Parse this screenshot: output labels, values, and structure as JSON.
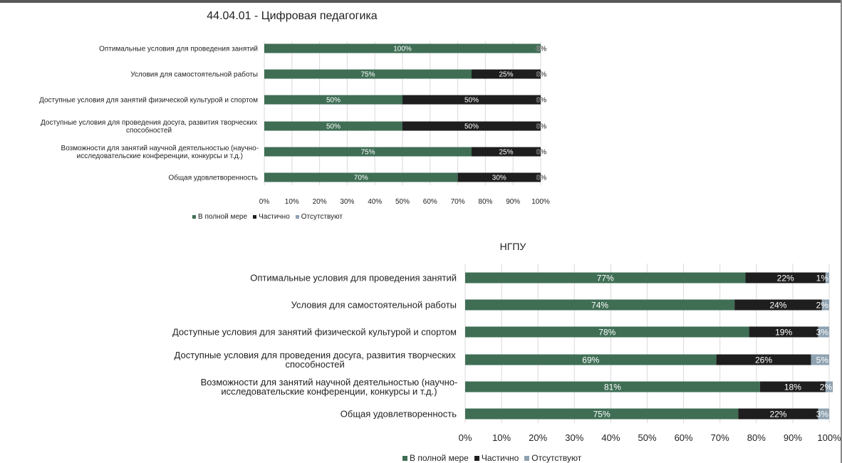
{
  "colors": {
    "full": "#3f6e55",
    "partial": "#1e1e1e",
    "absent": "#8ea1b0"
  },
  "legend": {
    "full": "В полной мере",
    "partial": "Частично",
    "absent": "Отсутствуют"
  },
  "chart_data": [
    {
      "type": "bar",
      "orientation": "horizontal",
      "stacked": "percent",
      "title": "44.04.01 - Цифровая педагогика",
      "categories": [
        [
          "Оптимальные условия для проведения занятий"
        ],
        [
          "Условия для самостоятельной работы"
        ],
        [
          "Доступные условия для занятий физической культурой и спортом"
        ],
        [
          "Доступные условия для проведения досуга, развития творческих",
          "способностей"
        ],
        [
          "Возможности для занятий научной деятельностью (научно-",
          "исследовательские конференции, конкурсы и т.д.)"
        ],
        [
          "Общая удовлетворенность"
        ]
      ],
      "series": [
        {
          "name": "В полной мере",
          "values": [
            100,
            75,
            50,
            50,
            75,
            70
          ]
        },
        {
          "name": "Частично",
          "values": [
            0,
            25,
            50,
            50,
            25,
            30
          ]
        },
        {
          "name": "Отсутствуют",
          "values": [
            0,
            0,
            0,
            0,
            0,
            0
          ]
        }
      ],
      "xlim": [
        0,
        100
      ],
      "xticks": [
        "0%",
        "10%",
        "20%",
        "30%",
        "40%",
        "50%",
        "60%",
        "70%",
        "80%",
        "90%",
        "100%"
      ],
      "grid": true,
      "legend_position": "bottom"
    },
    {
      "type": "bar",
      "orientation": "horizontal",
      "stacked": "percent",
      "title": "НГПУ",
      "categories": [
        [
          "Оптимальные условия для проведения занятий"
        ],
        [
          "Условия для самостоятельной работы"
        ],
        [
          "Доступные условия для занятий физической культурой и спортом"
        ],
        [
          "Доступные условия для проведения досуга, развития творческих",
          "способностей"
        ],
        [
          "Возможности для занятий научной деятельностью (научно-",
          "исследовательские конференции, конкурсы и т.д.)"
        ],
        [
          "Общая удовлетворенность"
        ]
      ],
      "series": [
        {
          "name": "В полной мере",
          "values": [
            77,
            74,
            78,
            69,
            81,
            75
          ]
        },
        {
          "name": "Частично",
          "values": [
            22,
            24,
            19,
            26,
            18,
            22
          ]
        },
        {
          "name": "Отсутствуют",
          "values": [
            1,
            2,
            3,
            5,
            2,
            3
          ]
        }
      ],
      "xlim": [
        0,
        100
      ],
      "xticks": [
        "0%",
        "10%",
        "20%",
        "30%",
        "40%",
        "50%",
        "60%",
        "70%",
        "80%",
        "90%",
        "100%"
      ],
      "grid": true,
      "legend_position": "bottom"
    }
  ]
}
